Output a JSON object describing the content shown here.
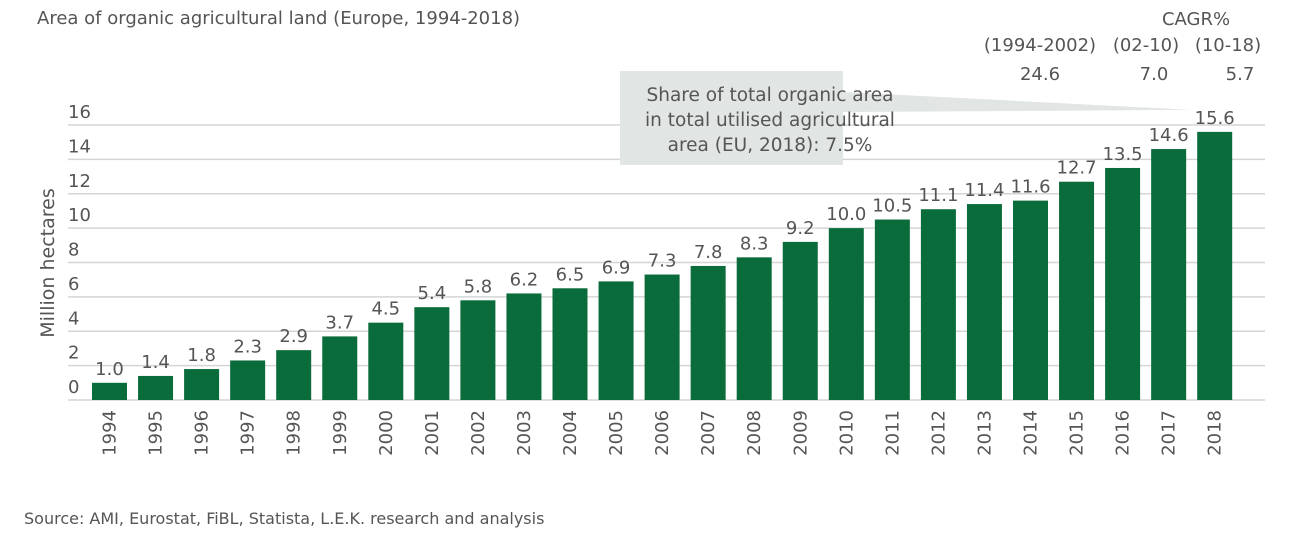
{
  "chart_data": {
    "type": "bar",
    "title": "Area of organic agricultural land (Europe, 1994-2018)",
    "ylabel": "Million hectares",
    "xlabel": "",
    "ylim": [
      0,
      16
    ],
    "yticks": [
      0,
      2,
      4,
      6,
      8,
      10,
      12,
      14,
      16
    ],
    "grid": true,
    "categories": [
      "1994",
      "1995",
      "1996",
      "1997",
      "1998",
      "1999",
      "2000",
      "2001",
      "2002",
      "2003",
      "2004",
      "2005",
      "2006",
      "2007",
      "2008",
      "2009",
      "2010",
      "2011",
      "2012",
      "2013",
      "2014",
      "2015",
      "2016",
      "2017",
      "2018"
    ],
    "values": [
      1.0,
      1.4,
      1.8,
      2.3,
      2.9,
      3.7,
      4.5,
      5.4,
      5.8,
      6.2,
      6.5,
      6.9,
      7.3,
      7.8,
      8.3,
      9.2,
      10.0,
      10.5,
      11.1,
      11.4,
      11.6,
      12.7,
      13.5,
      14.6,
      15.6
    ],
    "bar_color": "#0a6b3b",
    "callout": {
      "lines": [
        "Share of total organic area",
        "in total utilised agricultural",
        "area (EU, 2018): 7.5%"
      ],
      "target": "2018"
    },
    "cagr": {
      "header": "CAGR%",
      "periods": [
        "(1994-2002)",
        "(02-10)",
        "(10-18)"
      ],
      "values": [
        "24.6",
        "7.0",
        "5.7"
      ]
    },
    "source": "Source: AMI, Eurostat, FiBL, Statista, L.E.K. research and analysis"
  }
}
